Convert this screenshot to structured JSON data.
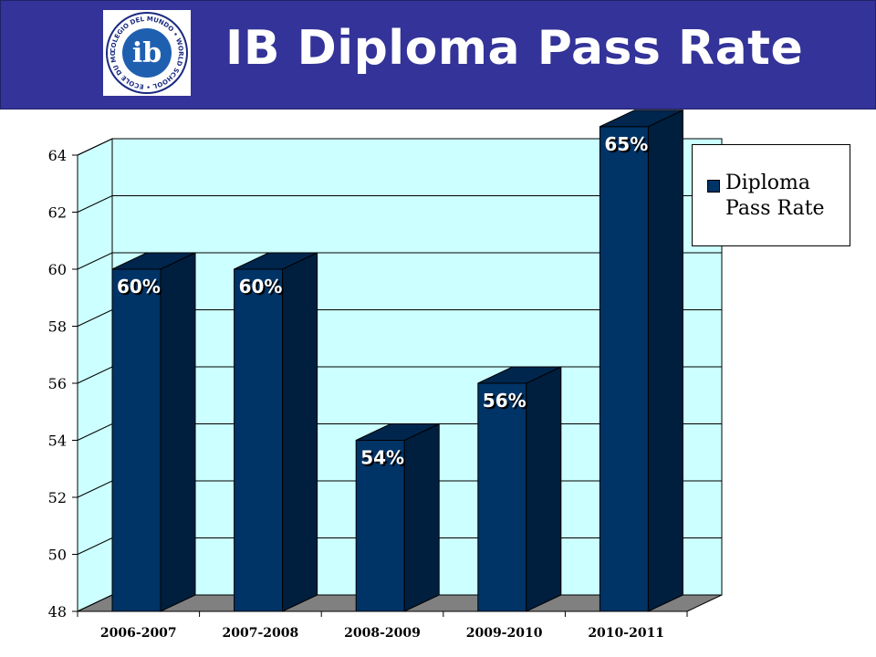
{
  "header": {
    "title": "IB Diploma Pass Rate",
    "logo": {
      "icon": "ib-world-school-logo",
      "letters": "ib",
      "ring_text": "COLEGIO DEL MUNDO • WORLD SCHOOL • ECOLE DU MONDE •"
    },
    "background_color": "#333399"
  },
  "chart_data": {
    "type": "bar",
    "style": "3d-column",
    "title": "IB Diploma Pass Rate",
    "categories": [
      "2006-2007",
      "2007-2008",
      "2008-2009",
      "2009-2010",
      "2010-2011"
    ],
    "series": [
      {
        "name": "Diploma Pass Rate",
        "values": [
          60,
          60,
          54,
          56,
          65
        ],
        "data_labels": [
          "60%",
          "60%",
          "54%",
          "56%",
          "65%"
        ],
        "color": "#003366"
      }
    ],
    "ylim": [
      48,
      64
    ],
    "yticks": [
      48,
      50,
      52,
      54,
      56,
      58,
      60,
      62,
      64
    ],
    "xlabel": "",
    "ylabel": "",
    "grid": true,
    "legend_position": "right",
    "plot_background": "#ccffff",
    "floor_color": "#808080"
  }
}
